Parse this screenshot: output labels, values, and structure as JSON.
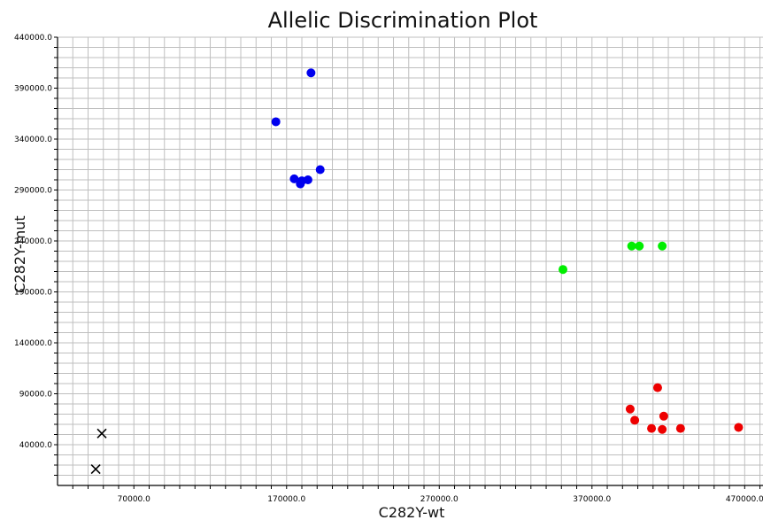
{
  "chart_data": {
    "type": "scatter",
    "title": "Allelic Discrimination Plot",
    "xlabel": "C282Y-wt",
    "ylabel": "C282Y-mut",
    "xlim": [
      20000,
      482000
    ],
    "ylim": [
      0,
      440000
    ],
    "x_ticks": [
      "70000.0",
      "170000.0",
      "270000.0",
      "370000.0",
      "470000.0"
    ],
    "x_tick_values": [
      70000,
      170000,
      270000,
      370000,
      470000
    ],
    "y_ticks": [
      "40000.0",
      "90000.0",
      "140000.0",
      "190000.0",
      "240000.0",
      "290000.0",
      "340000.0",
      "390000.0",
      "440000.0"
    ],
    "y_tick_values": [
      40000,
      90000,
      140000,
      190000,
      240000,
      290000,
      340000,
      390000,
      440000
    ],
    "grid": true,
    "series": [
      {
        "color": "#0000ee",
        "marker": "circle",
        "points": [
          [
            186000,
            405000
          ],
          [
            163000,
            357000
          ],
          [
            180000,
            299000
          ],
          [
            175000,
            301000
          ],
          [
            184000,
            300000
          ],
          [
            192000,
            310000
          ],
          [
            179000,
            296000
          ]
        ]
      },
      {
        "color": "#00ee00",
        "marker": "circle",
        "points": [
          [
            351000,
            212000
          ],
          [
            396000,
            235000
          ],
          [
            401000,
            235000
          ],
          [
            416000,
            235000
          ]
        ]
      },
      {
        "color": "#ee0000",
        "marker": "circle",
        "points": [
          [
            395000,
            75000
          ],
          [
            413000,
            96000
          ],
          [
            398000,
            64000
          ],
          [
            417000,
            68000
          ],
          [
            409000,
            56000
          ],
          [
            416000,
            55000
          ],
          [
            428000,
            56000
          ],
          [
            466000,
            57000
          ]
        ]
      },
      {
        "color": "#000000",
        "marker": "x",
        "points": [
          [
            49000,
            51000
          ],
          [
            45000,
            16000
          ]
        ]
      }
    ]
  }
}
